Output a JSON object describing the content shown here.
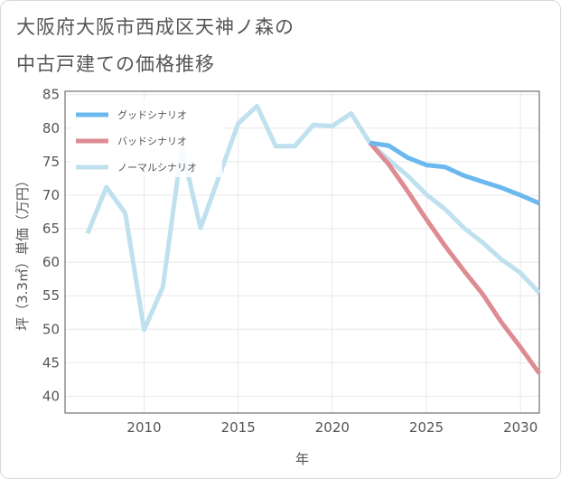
{
  "title_line1": "大阪府大阪市西成区天神ノ森の",
  "title_line2": "中古戸建ての価格推移",
  "colors": {
    "good": "#6ab8ee",
    "bad": "#de8b93",
    "normal": "#bfe0ee",
    "grid": "#e8e8e8",
    "axis": "#555555"
  },
  "chart_data": {
    "type": "line",
    "title": "大阪府大阪市西成区天神ノ森の中古戸建ての価格推移",
    "xlabel": "年",
    "ylabel": "坪（3.3㎡）単価（万円）",
    "xlim": [
      2005.8,
      2031
    ],
    "ylim": [
      37.5,
      85.5
    ],
    "xticks": [
      2010,
      2015,
      2020,
      2025,
      2030
    ],
    "yticks": [
      40,
      45,
      50,
      55,
      60,
      65,
      70,
      75,
      80,
      85
    ],
    "legend_position": "top-left",
    "series": [
      {
        "name": "グッドシナリオ",
        "key": "good",
        "x": [
          2022,
          2023,
          2024,
          2025,
          2026,
          2027,
          2028,
          2029,
          2030,
          2031
        ],
        "y": [
          77.8,
          77.4,
          75.6,
          74.5,
          74.2,
          72.9,
          72.0,
          71.1,
          70.0,
          68.8
        ]
      },
      {
        "name": "バッドシナリオ",
        "key": "bad",
        "x": [
          2022,
          2023,
          2024,
          2025,
          2026,
          2027,
          2028,
          2029,
          2030,
          2031
        ],
        "y": [
          77.8,
          74.6,
          70.6,
          66.4,
          62.4,
          58.7,
          55.2,
          51.0,
          47.3,
          43.4
        ]
      },
      {
        "name": "ノーマルシナリオ",
        "key": "normal",
        "x": [
          2007,
          2008,
          2009,
          2010,
          2011,
          2012,
          2013,
          2014,
          2015,
          2016,
          2017,
          2018,
          2019,
          2020,
          2021,
          2022,
          2023,
          2024,
          2025,
          2026,
          2027,
          2028,
          2029,
          2030,
          2031
        ],
        "y": [
          64.3,
          71.2,
          67.3,
          49.9,
          56.3,
          77.1,
          65.1,
          72.9,
          80.7,
          83.3,
          77.3,
          77.3,
          80.5,
          80.3,
          82.2,
          77.8,
          75.3,
          72.9,
          70.1,
          67.9,
          65.1,
          62.9,
          60.4,
          58.4,
          55.4
        ]
      }
    ]
  }
}
